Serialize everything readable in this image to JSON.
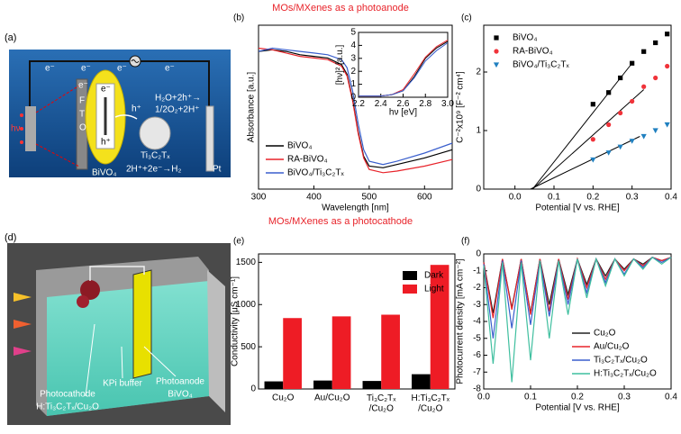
{
  "headings": {
    "top": "MOs/MXenes as a photoanode",
    "bottom": "MOs/MXenes as a photocathode"
  },
  "panel_a": {
    "label": "(a)",
    "light": "hν",
    "electrons": [
      "e⁻",
      "e⁻",
      "e⁻",
      "e⁻",
      "e⁻"
    ],
    "fto": [
      "F",
      "T",
      "O"
    ],
    "photoanode": "BiVO₄",
    "hole": "h⁺",
    "hole_inner": "h⁺",
    "electron_inner": "e⁻",
    "oxidation_1": "H₂O+2h⁺→",
    "oxidation_2": "1/2O₂+2H⁺",
    "mxene": "Ti₃C₂Tₓ",
    "reduction": "2H⁺+2e⁻→H₂",
    "counter": "Pt"
  },
  "panel_d": {
    "label": "(d)",
    "cathode_1": "Photocathode",
    "cathode_2": "H:Ti₃C₂Tₓ/Cu₂O",
    "electrolyte": "KPi buffer",
    "anode_1": "Photoanode",
    "anode_2": "BiVO₄"
  },
  "chart_data": [
    {
      "type": "line",
      "label": "(b)",
      "x_label": "Wavelength [nm]",
      "y_label": "Absorbance [a.u.]",
      "x": [
        300,
        325,
        350,
        375,
        400,
        425,
        450,
        460,
        470,
        480,
        490,
        500,
        525,
        550,
        600,
        650
      ],
      "xlim": [
        300,
        650
      ],
      "xticks": [
        300,
        400,
        500,
        600
      ],
      "ylim": [
        0,
        1
      ],
      "yticks": [],
      "legend": "lower-left",
      "series": [
        {
          "name": "BiVO₄",
          "color": "#000000",
          "values": [
            0.84,
            0.85,
            0.84,
            0.82,
            0.81,
            0.8,
            0.76,
            0.7,
            0.55,
            0.35,
            0.2,
            0.14,
            0.13,
            0.15,
            0.19,
            0.24
          ]
        },
        {
          "name": "RA-BiVO₄",
          "color": "#e8232a",
          "values": [
            0.86,
            0.85,
            0.83,
            0.81,
            0.8,
            0.79,
            0.75,
            0.69,
            0.54,
            0.34,
            0.19,
            0.12,
            0.1,
            0.11,
            0.14,
            0.18
          ]
        },
        {
          "name": "BiVO₄/Ti₃C₂Tₓ",
          "color": "#3a5fcd",
          "values": [
            0.84,
            0.86,
            0.85,
            0.84,
            0.83,
            0.82,
            0.79,
            0.74,
            0.6,
            0.4,
            0.24,
            0.17,
            0.15,
            0.17,
            0.22,
            0.28
          ]
        }
      ],
      "inset": {
        "x_label": "hν [eV]",
        "y_label": "[hν]² [a.u.]",
        "x": [
          2.2,
          2.4,
          2.5,
          2.6,
          2.7,
          2.8,
          2.9,
          3.0
        ],
        "xlim": [
          2.2,
          3.0
        ],
        "xticks": [
          2.2,
          2.4,
          2.6,
          2.8,
          {
            "value": 3,
            "label": "3.0"
          }
        ],
        "ylim": [
          0,
          5
        ],
        "yticks": [
          0,
          1,
          2,
          3,
          4,
          5
        ],
        "series": [
          {
            "color": "#000000",
            "values": [
              0.1,
              0.1,
              0.2,
              0.5,
              1.6,
              3.0,
              3.8,
              4.3
            ]
          },
          {
            "color": "#e8232a",
            "values": [
              0.1,
              0.1,
              0.2,
              0.6,
              1.8,
              3.1,
              3.9,
              4.4
            ]
          },
          {
            "color": "#3a5fcd",
            "values": [
              0.1,
              0.1,
              0.2,
              0.5,
              1.5,
              2.8,
              3.6,
              4.2
            ]
          }
        ]
      }
    },
    {
      "type": "scatter",
      "label": "(c)",
      "x_label": "Potential [V vs. RHE]",
      "y_label": "C⁻²x10⁹ [F⁻² cm⁴]",
      "x": [
        0.2,
        0.24,
        0.27,
        0.3,
        0.33,
        0.36,
        0.39
      ],
      "xlim": [
        -0.08,
        0.4
      ],
      "xticks": [
        {
          "value": 0,
          "label": "0.0"
        },
        0.1,
        0.2,
        0.3,
        0.4
      ],
      "ylim": [
        0,
        2.8
      ],
      "yticks": [
        0,
        1,
        2
      ],
      "legend": "upper-left",
      "series": [
        {
          "name": "BiVO₄",
          "color": "#000000",
          "marker": "square",
          "values": [
            1.45,
            1.65,
            1.9,
            2.15,
            2.35,
            2.5,
            2.65
          ],
          "fit_x": [
            0.045,
            0.3
          ],
          "fit_y": [
            0,
            2.15
          ]
        },
        {
          "name": "RA-BiVO₄",
          "color": "#f0333a",
          "marker": "circle",
          "values": [
            0.85,
            1.1,
            1.3,
            1.5,
            1.75,
            1.9,
            2.1
          ],
          "fit_x": [
            0.045,
            0.33
          ],
          "fit_y": [
            0,
            1.7
          ]
        },
        {
          "name": "BiVO₄/Ti₃C₂Tₓ",
          "color": "#2080c0",
          "marker": "triangle",
          "values": [
            0.5,
            0.62,
            0.72,
            0.82,
            0.9,
            1.0,
            1.1
          ],
          "fit_x": [
            0.04,
            0.32
          ],
          "fit_y": [
            0,
            0.9
          ]
        }
      ]
    },
    {
      "type": "bar",
      "label": "(e)",
      "y_label": "Conductivity [μS cm⁻¹]",
      "categories": [
        "Cu₂O",
        "Au/Cu₂O",
        "Ti₃C₂Tₓ/Cu₂O",
        "H:Ti₃C₂Tₓ/Cu₂O"
      ],
      "ylim": [
        0,
        1600
      ],
      "yticks": [
        0,
        500,
        1000,
        1500
      ],
      "legend": "upper-right",
      "series": [
        {
          "name": "Dark",
          "color": "#000000",
          "values": [
            90,
            100,
            95,
            175
          ]
        },
        {
          "name": "Light",
          "color": "#ee1c25",
          "values": [
            840,
            860,
            880,
            1470
          ]
        }
      ]
    },
    {
      "type": "line",
      "label": "(f)",
      "x_label": "Potential [V vs. RHE]",
      "y_label": "Photocurrent density [mA cm⁻²]",
      "x": [
        0,
        0.02,
        0.04,
        0.06,
        0.08,
        0.1,
        0.12,
        0.14,
        0.16,
        0.18,
        0.2,
        0.22,
        0.24,
        0.26,
        0.28,
        0.3,
        0.32,
        0.34,
        0.36,
        0.38,
        0.4
      ],
      "xlim": [
        0,
        0.4
      ],
      "xticks": [
        {
          "value": 0,
          "label": "0.0"
        },
        0.1,
        0.2,
        0.3,
        0.4
      ],
      "ylim": [
        -8,
        0
      ],
      "yticks": [
        -8,
        -7,
        -6,
        -5,
        -4,
        -3,
        -2,
        -1,
        0
      ],
      "legend": "lower-right",
      "series": [
        {
          "name": "Cu₂O",
          "color": "#222222",
          "values": [
            -0.5,
            -3.5,
            -0.3,
            -3.2,
            -0.3,
            -3.5,
            -0.3,
            -3.0,
            -0.3,
            -2.4,
            -0.3,
            -1.8,
            -0.3,
            -1.3,
            -0.3,
            -0.9,
            -0.3,
            -0.6,
            -0.2,
            -0.4,
            -0.2
          ]
        },
        {
          "name": "Au/Cu₂O",
          "color": "#e8232a",
          "values": [
            -0.5,
            -3.8,
            -0.3,
            -3.3,
            -0.3,
            -3.6,
            -0.3,
            -3.4,
            -0.3,
            -2.7,
            -0.3,
            -2.0,
            -0.3,
            -1.5,
            -0.3,
            -1.0,
            -0.3,
            -0.7,
            -0.2,
            -0.4,
            -0.2
          ]
        },
        {
          "name": "Ti₃C₂Tₓ/Cu₂O",
          "color": "#3a5fcd",
          "values": [
            -0.6,
            -5.0,
            -0.4,
            -4.4,
            -0.4,
            -4.2,
            -0.4,
            -3.7,
            -0.4,
            -3.0,
            -0.3,
            -2.3,
            -0.3,
            -1.7,
            -0.3,
            -1.2,
            -0.3,
            -0.8,
            -0.2,
            -0.5,
            -0.2
          ]
        },
        {
          "name": "H:Ti₃C₂Tₓ/Cu₂O",
          "color": "#3fbf9f",
          "values": [
            -0.7,
            -6.5,
            -0.5,
            -7.6,
            -0.5,
            -6.3,
            -0.4,
            -5.0,
            -0.4,
            -3.6,
            -0.3,
            -2.6,
            -0.3,
            -1.9,
            -0.3,
            -1.3,
            -0.3,
            -0.9,
            -0.2,
            -0.6,
            -0.2
          ]
        }
      ]
    }
  ]
}
